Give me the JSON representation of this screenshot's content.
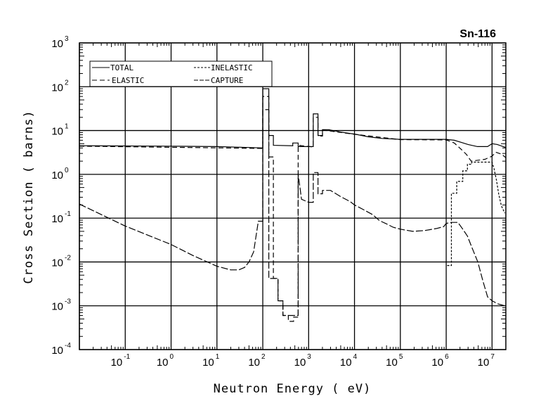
{
  "chart_data": {
    "type": "line",
    "title": "Sn-116",
    "xlabel": "Neutron Energy ( eV)",
    "ylabel": "Cross Section ( barns)",
    "xscale": "log",
    "yscale": "log",
    "xlim": [
      0.01,
      20000000
    ],
    "ylim": [
      0.0001,
      1000
    ],
    "grid": true,
    "legend_placement": "top-left",
    "x_tick_labels": [
      {
        "base": "10",
        "exp": "-1",
        "value": 0.1
      },
      {
        "base": "10",
        "exp": "0",
        "value": 1
      },
      {
        "base": "10",
        "exp": "1",
        "value": 10
      },
      {
        "base": "10",
        "exp": "2",
        "value": 100
      },
      {
        "base": "10",
        "exp": "3",
        "value": 1000
      },
      {
        "base": "10",
        "exp": "4",
        "value": 10000
      },
      {
        "base": "10",
        "exp": "5",
        "value": 100000
      },
      {
        "base": "10",
        "exp": "6",
        "value": 1000000
      },
      {
        "base": "10",
        "exp": "7",
        "value": 10000000
      }
    ],
    "y_tick_labels": [
      {
        "base": "10",
        "exp": "3",
        "value": 1000
      },
      {
        "base": "10",
        "exp": "2",
        "value": 100
      },
      {
        "base": "10",
        "exp": "1",
        "value": 10
      },
      {
        "base": "10",
        "exp": "0",
        "value": 1
      },
      {
        "base": "10",
        "exp": "-1",
        "value": 0.1
      },
      {
        "base": "10",
        "exp": "-2",
        "value": 0.01
      },
      {
        "base": "10",
        "exp": "-3",
        "value": 0.001
      },
      {
        "base": "10",
        "exp": "-4",
        "value": 0.0001
      }
    ],
    "series": [
      {
        "name": "TOTAL",
        "style": "solid",
        "points": [
          [
            0.01,
            4.5
          ],
          [
            1,
            4.4
          ],
          [
            10,
            4.3
          ],
          [
            50,
            4.1
          ],
          [
            100,
            4.0
          ],
          [
            100,
            90
          ],
          [
            135,
            90
          ],
          [
            135,
            7.7
          ],
          [
            170,
            7.7
          ],
          [
            170,
            4.6
          ],
          [
            450,
            4.5
          ],
          [
            450,
            5.2
          ],
          [
            590,
            5.2
          ],
          [
            590,
            4.3
          ],
          [
            1260,
            4.3
          ],
          [
            1260,
            24
          ],
          [
            1600,
            24
          ],
          [
            1600,
            7.7
          ],
          [
            2000,
            7.7
          ],
          [
            2000,
            10.5
          ],
          [
            2750,
            10.5
          ],
          [
            5000,
            9.2
          ],
          [
            10000,
            8.3
          ],
          [
            20000,
            7.2
          ],
          [
            40000,
            6.6
          ],
          [
            100000,
            6.3
          ],
          [
            1000000,
            6.3
          ],
          [
            1500000,
            6.0
          ],
          [
            2200000,
            5.3
          ],
          [
            3000000,
            4.8
          ],
          [
            4800000,
            4.3
          ],
          [
            8000000,
            4.3
          ],
          [
            10000000,
            5.0
          ],
          [
            13000000,
            4.8
          ],
          [
            20000000,
            4.1
          ]
        ]
      },
      {
        "name": "ELASTIC",
        "style": "dash",
        "points": [
          [
            0.01,
            4.4
          ],
          [
            100,
            3.9
          ],
          [
            100,
            60
          ],
          [
            135,
            60
          ],
          [
            135,
            2.5
          ],
          [
            170,
            2.5
          ],
          [
            170,
            0.0042
          ],
          [
            215,
            0.0042
          ],
          [
            215,
            0.0013
          ],
          [
            275,
            0.0013
          ],
          [
            275,
            0.0006
          ],
          [
            360,
            0.0006
          ],
          [
            360,
            0.00044
          ],
          [
            470,
            0.00044
          ],
          [
            470,
            0.00055
          ],
          [
            590,
            0.00055
          ],
          [
            590,
            4.6
          ],
          [
            1260,
            4.2
          ],
          [
            1260,
            20
          ],
          [
            1600,
            20
          ],
          [
            1600,
            7.5
          ],
          [
            2000,
            7.5
          ],
          [
            2000,
            10.3
          ],
          [
            10000,
            8.2
          ],
          [
            100000,
            6.2
          ],
          [
            1000000,
            6.1
          ],
          [
            1500000,
            5.2
          ],
          [
            2200000,
            3.6
          ],
          [
            2800000,
            2.8
          ],
          [
            3500000,
            2.0
          ],
          [
            7000000,
            2.2
          ],
          [
            10000000,
            2.6
          ],
          [
            12000000,
            3.2
          ],
          [
            16000000,
            2.9
          ],
          [
            20000000,
            2.4
          ]
        ]
      },
      {
        "name": "INELASTIC",
        "style": "dot",
        "points": [
          [
            1050000,
            0.0083
          ],
          [
            1300000,
            0.0083
          ],
          [
            1300000,
            0.37
          ],
          [
            1700000,
            0.37
          ],
          [
            1700000,
            0.69
          ],
          [
            2300000,
            0.69
          ],
          [
            2300000,
            1.2
          ],
          [
            2900000,
            1.2
          ],
          [
            2900000,
            1.7
          ],
          [
            3600000,
            1.7
          ],
          [
            3600000,
            1.9
          ],
          [
            10000000,
            1.9
          ],
          [
            11000000,
            1.36
          ],
          [
            12500000,
            0.73
          ],
          [
            14000000,
            0.35
          ],
          [
            16000000,
            0.19
          ],
          [
            19000000,
            0.13
          ]
        ]
      },
      {
        "name": "CAPTURE",
        "style": "longdash",
        "points": [
          [
            0.01,
            0.21
          ],
          [
            0.1,
            0.066
          ],
          [
            1,
            0.025
          ],
          [
            3,
            0.014
          ],
          [
            10,
            0.008
          ],
          [
            20,
            0.0066
          ],
          [
            30,
            0.0066
          ],
          [
            40,
            0.0075
          ],
          [
            50,
            0.01
          ],
          [
            63,
            0.017
          ],
          [
            80,
            0.085
          ],
          [
            100,
            0.085
          ],
          [
            100,
            30
          ],
          [
            135,
            30
          ],
          [
            135,
            0.0042
          ],
          [
            215,
            0.0042
          ],
          [
            215,
            0.0013
          ],
          [
            275,
            0.0013
          ],
          [
            275,
            0.0006
          ],
          [
            470,
            0.0006
          ],
          [
            590,
            0.0006
          ],
          [
            590,
            1.0
          ],
          [
            700,
            0.27
          ],
          [
            1000,
            0.23
          ],
          [
            1260,
            0.23
          ],
          [
            1260,
            1.1
          ],
          [
            1600,
            1.1
          ],
          [
            1600,
            0.36
          ],
          [
            2000,
            0.36
          ],
          [
            2000,
            0.43
          ],
          [
            3000,
            0.43
          ],
          [
            5000,
            0.31
          ],
          [
            8000,
            0.24
          ],
          [
            10000,
            0.2
          ],
          [
            15000,
            0.16
          ],
          [
            25000,
            0.12
          ],
          [
            35000,
            0.088
          ],
          [
            50000,
            0.074
          ],
          [
            70000,
            0.062
          ],
          [
            100000,
            0.056
          ],
          [
            186000,
            0.05
          ],
          [
            340000,
            0.052
          ],
          [
            610000,
            0.058
          ],
          [
            880000,
            0.064
          ],
          [
            1000000,
            0.076
          ],
          [
            1300000,
            0.08
          ],
          [
            1800000,
            0.08
          ],
          [
            2300000,
            0.056
          ],
          [
            2900000,
            0.039
          ],
          [
            3600000,
            0.022
          ],
          [
            4900000,
            0.01
          ],
          [
            6300000,
            0.0037
          ],
          [
            8000000,
            0.0016
          ],
          [
            10000000,
            0.0013
          ],
          [
            13500000,
            0.0011
          ],
          [
            19000000,
            0.001
          ]
        ]
      }
    ]
  },
  "legend": {
    "total": "TOTAL",
    "elastic": "ELASTIC",
    "inelastic": "INELASTIC",
    "capture": "CAPTURE"
  }
}
